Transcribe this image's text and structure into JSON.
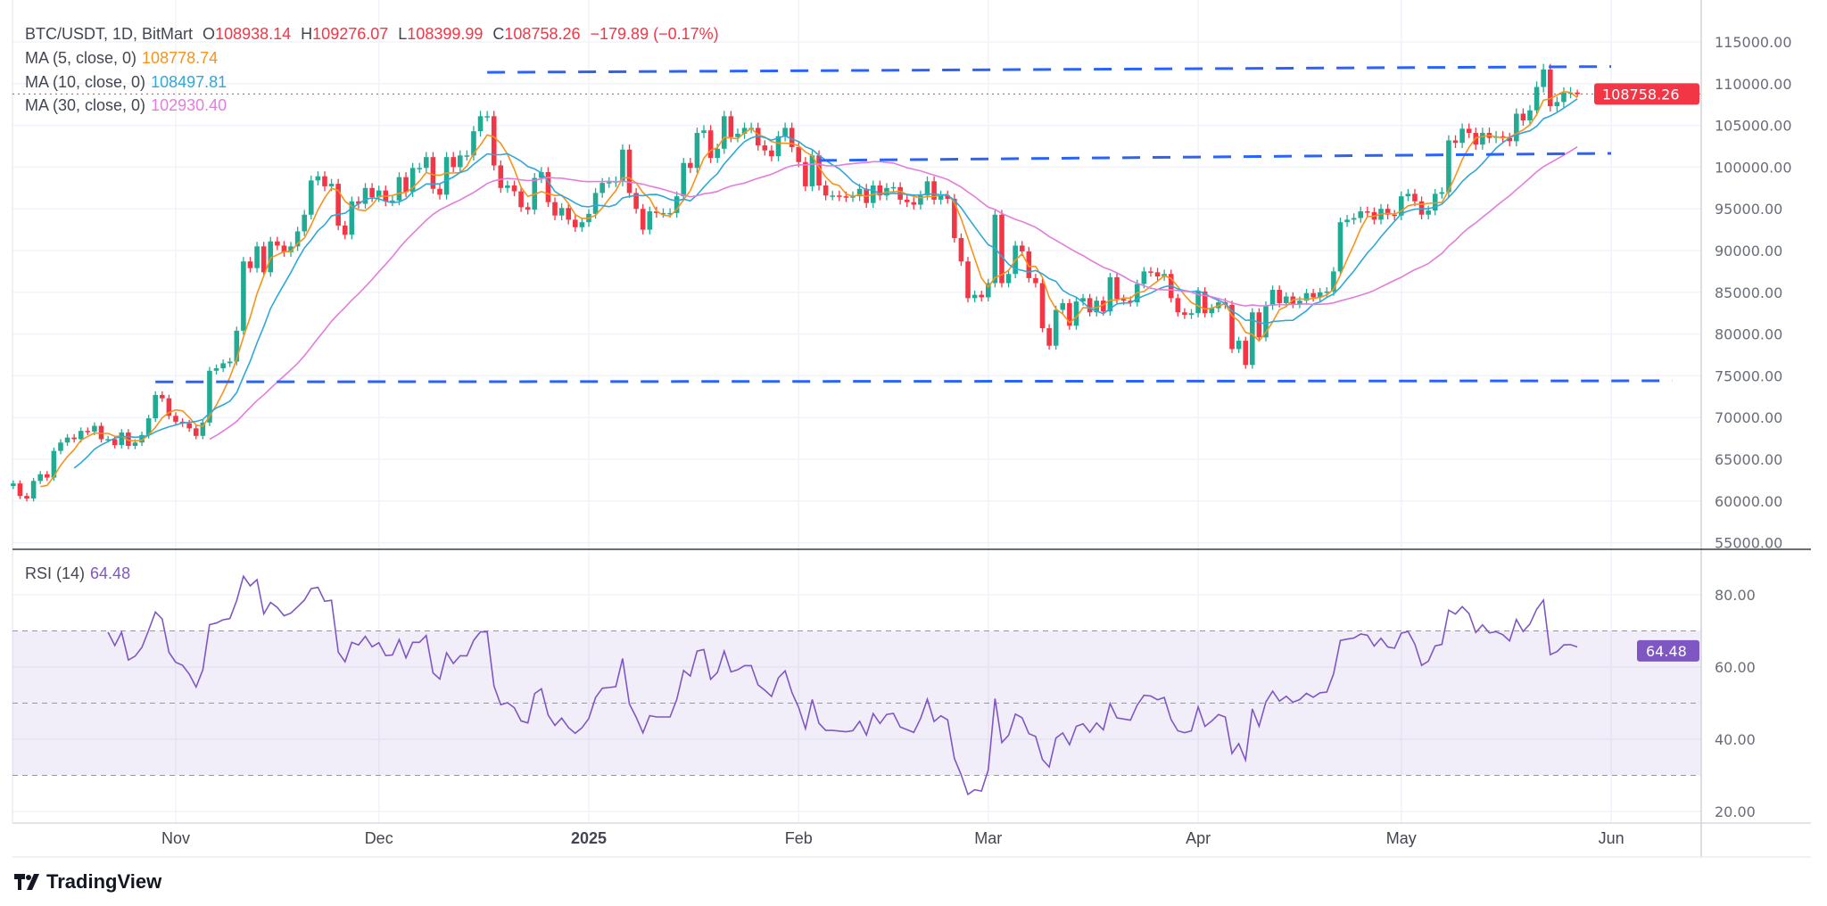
{
  "header": {
    "symbol": "BTC/USDT, 1D, BitMart",
    "o_label": "O",
    "o": "108938.14",
    "h_label": "H",
    "h": "109276.07",
    "l_label": "L",
    "l": "108399.99",
    "c_label": "C",
    "c": "108758.26",
    "change": "−179.89 (−0.17%)"
  },
  "indicators": [
    {
      "label": "MA (5, close, 0)",
      "value": "108778.74",
      "color": "#f7931a",
      "period": 5
    },
    {
      "label": "MA (10, close, 0)",
      "value": "108497.81",
      "color": "#2fa8d8",
      "period": 10
    },
    {
      "label": "MA (30, close, 0)",
      "value": "102930.40",
      "color": "#e27ddc",
      "period": 30
    }
  ],
  "rsi": {
    "label": "RSI (14)",
    "value": "64.48",
    "period": 14,
    "color": "#7e57c2",
    "upper": 70,
    "middle": 50,
    "lower": 30,
    "ticks": [
      "80.00",
      "60.00",
      "40.00",
      "20.00"
    ],
    "tick_values": [
      80,
      60,
      40,
      20
    ]
  },
  "brand": "TradingView",
  "colors": {
    "up": "#22ab94",
    "down": "#f23645",
    "trendline": "#2962ff",
    "grid": "#f0f3fa"
  },
  "chart_data": {
    "type": "candlestick",
    "start_date": "2024-10-08",
    "last_price_label": "108758.26",
    "ylim": [
      55000,
      115000
    ],
    "price_ticks": [
      "115000.00",
      "110000.00",
      "105000.00",
      "100000.00",
      "95000.00",
      "90000.00",
      "85000.00",
      "80000.00",
      "75000.00",
      "70000.00",
      "65000.00",
      "60000.00",
      "55000.00"
    ],
    "price_tick_values": [
      115000,
      110000,
      105000,
      100000,
      95000,
      90000,
      85000,
      80000,
      75000,
      70000,
      65000,
      60000,
      55000
    ],
    "x_labels": [
      {
        "label": "Nov",
        "date": "2024-11-01",
        "bold": false
      },
      {
        "label": "Dec",
        "date": "2024-12-01",
        "bold": false
      },
      {
        "label": "2025",
        "date": "2025-01-01",
        "bold": true
      },
      {
        "label": "Feb",
        "date": "2025-02-01",
        "bold": false
      },
      {
        "label": "Mar",
        "date": "2025-03-01",
        "bold": false
      },
      {
        "label": "Apr",
        "date": "2025-04-01",
        "bold": false
      },
      {
        "label": "May",
        "date": "2025-05-01",
        "bold": false
      },
      {
        "label": "Jun",
        "date": "2025-06-01",
        "bold": false
      }
    ],
    "grid": true,
    "close": [
      62100,
      60600,
      60300,
      62400,
      63200,
      62800,
      66000,
      67000,
      67600,
      67400,
      68400,
      68300,
      69000,
      67400,
      67400,
      66700,
      68200,
      66600,
      67000,
      67900,
      69900,
      72700,
      72300,
      70200,
      69500,
      69300,
      68700,
      67800,
      69400,
      75600,
      75900,
      76500,
      76700,
      80400,
      88700,
      87900,
      90500,
      87400,
      91100,
      90600,
      89800,
      90500,
      92300,
      94300,
      98400,
      98900,
      97700,
      98000,
      93000,
      91900,
      95900,
      95600,
      97500,
      96400,
      97200,
      95900,
      96000,
      98800,
      97000,
      99900,
      99900,
      101200,
      97400,
      96700,
      101200,
      100000,
      101400,
      101400,
      104300,
      106100,
      106100,
      100200,
      97500,
      97800,
      97100,
      95200,
      94900,
      98700,
      99400,
      95800,
      94200,
      95100,
      93700,
      92800,
      93400,
      94400,
      96900,
      98100,
      98200,
      98300,
      102100,
      96900,
      95000,
      92500,
      94700,
      94500,
      94500,
      94500,
      96500,
      100500,
      99900,
      104100,
      104400,
      101100,
      102200,
      106100,
      103600,
      104000,
      104700,
      104700,
      102600,
      102000,
      101300,
      103700,
      104700,
      102400,
      100600,
      97700,
      101400,
      97800,
      96600,
      96600,
      96500,
      96400,
      96500,
      97400,
      95700,
      97800,
      96600,
      97500,
      97600,
      96100,
      95800,
      95500,
      96600,
      98300,
      96100,
      96600,
      96200,
      91500,
      88700,
      84300,
      84700,
      84400,
      86100,
      94300,
      86100,
      87200,
      90600,
      89900,
      86700,
      86100,
      80700,
      78600,
      82900,
      83700,
      81000,
      83900,
      84300,
      82600,
      84000,
      82700,
      86800,
      84200,
      84000,
      83800,
      86000,
      87500,
      87400,
      86900,
      87200,
      84300,
      82600,
      82300,
      82500,
      85100,
      82500,
      83100,
      83800,
      83500,
      78200,
      79200,
      76300,
      82600,
      79600,
      83400,
      85300,
      83700,
      84500,
      83600,
      84000,
      84900,
      84400,
      85000,
      85100,
      87500,
      93400,
      93700,
      93900,
      94700,
      94600,
      93700,
      95000,
      94300,
      94200,
      96500,
      96800,
      95900,
      94300,
      94800,
      96800,
      97000,
      103200,
      102900,
      104600,
      104100,
      102700,
      104100,
      103500,
      103700,
      103500,
      103100,
      106400,
      105600,
      106800,
      109600,
      111700,
      107300,
      107800,
      108900,
      108938.14,
      108758.26
    ],
    "last_candle": {
      "open": 108938.14,
      "high": 109276.07,
      "low": 108399.99,
      "close": 108758.26
    },
    "trendlines": [
      {
        "from": [
          "2024-12-17",
          111350
        ],
        "to": [
          "2025-06-01",
          112050
        ]
      },
      {
        "from": [
          "2025-02-04",
          100800
        ],
        "to": [
          "2025-06-01",
          101650
        ]
      },
      {
        "from": [
          "2024-10-29",
          74270
        ],
        "to": [
          "2025-06-10",
          74400
        ]
      }
    ]
  }
}
